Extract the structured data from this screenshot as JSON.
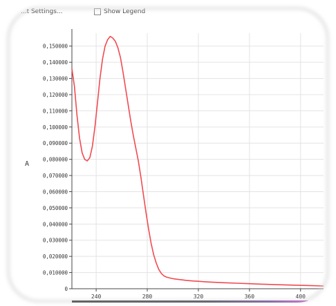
{
  "toolbar": {
    "settings_label": "...t Settings...",
    "legend_label": "Show Legend"
  },
  "colors": {
    "series": "#f04a50",
    "grid": "#e3e3e3",
    "axis": "#444444"
  },
  "chart_data": {
    "type": "line",
    "title": "",
    "xlabel": "",
    "ylabel": "A",
    "xlim": [
      221,
      418
    ],
    "ylim": [
      0,
      0.158
    ],
    "grid": true,
    "legend": "hidden",
    "x_ticks": [
      {
        "value": 240,
        "label": "240"
      },
      {
        "value": 280,
        "label": "280"
      },
      {
        "value": 320,
        "label": "320"
      },
      {
        "value": 360,
        "label": "360"
      },
      {
        "value": 400,
        "label": "400"
      }
    ],
    "y_ticks": [
      {
        "value": 0,
        "label": "0"
      },
      {
        "value": 0.01,
        "label": "0,010000"
      },
      {
        "value": 0.02,
        "label": "0,020000"
      },
      {
        "value": 0.03,
        "label": "0,030000"
      },
      {
        "value": 0.04,
        "label": "0,040000"
      },
      {
        "value": 0.05,
        "label": "0,050000"
      },
      {
        "value": 0.06,
        "label": "0,060000"
      },
      {
        "value": 0.07,
        "label": "0,070000"
      },
      {
        "value": 0.08,
        "label": "0,080000"
      },
      {
        "value": 0.09,
        "label": "0,090000"
      },
      {
        "value": 0.1,
        "label": "0,100000"
      },
      {
        "value": 0.11,
        "label": "0,110000"
      },
      {
        "value": 0.12,
        "label": "0,120000"
      },
      {
        "value": 0.13,
        "label": "0,130000"
      },
      {
        "value": 0.14,
        "label": "0,140000"
      },
      {
        "value": 0.15,
        "label": "0,150000"
      }
    ],
    "series": [
      {
        "color": "#f04a50",
        "x": [
          221,
          223,
          225,
          227,
          229,
          231,
          233,
          235,
          237,
          239,
          241,
          243,
          245,
          247,
          249,
          251,
          253,
          255,
          257,
          259,
          261,
          263,
          265,
          267,
          269,
          271,
          273,
          275,
          277,
          279,
          281,
          283,
          285,
          287,
          289,
          291,
          293,
          295,
          297,
          299,
          301,
          303,
          305,
          307,
          310,
          313,
          316,
          320,
          325,
          330,
          340,
          350,
          360,
          370,
          380,
          390,
          400,
          410,
          418
        ],
        "y": [
          0.136,
          0.125,
          0.107,
          0.093,
          0.084,
          0.08,
          0.079,
          0.081,
          0.088,
          0.1,
          0.115,
          0.13,
          0.142,
          0.15,
          0.154,
          0.156,
          0.155,
          0.153,
          0.149,
          0.143,
          0.134,
          0.124,
          0.114,
          0.104,
          0.095,
          0.087,
          0.079,
          0.069,
          0.058,
          0.047,
          0.037,
          0.028,
          0.021,
          0.016,
          0.012,
          0.0095,
          0.008,
          0.0072,
          0.0068,
          0.0064,
          0.0061,
          0.0059,
          0.0057,
          0.0055,
          0.0052,
          0.005,
          0.0048,
          0.0046,
          0.0043,
          0.0041,
          0.0037,
          0.0034,
          0.0031,
          0.0028,
          0.0025,
          0.0023,
          0.0021,
          0.0019,
          0.0017
        ]
      }
    ]
  }
}
